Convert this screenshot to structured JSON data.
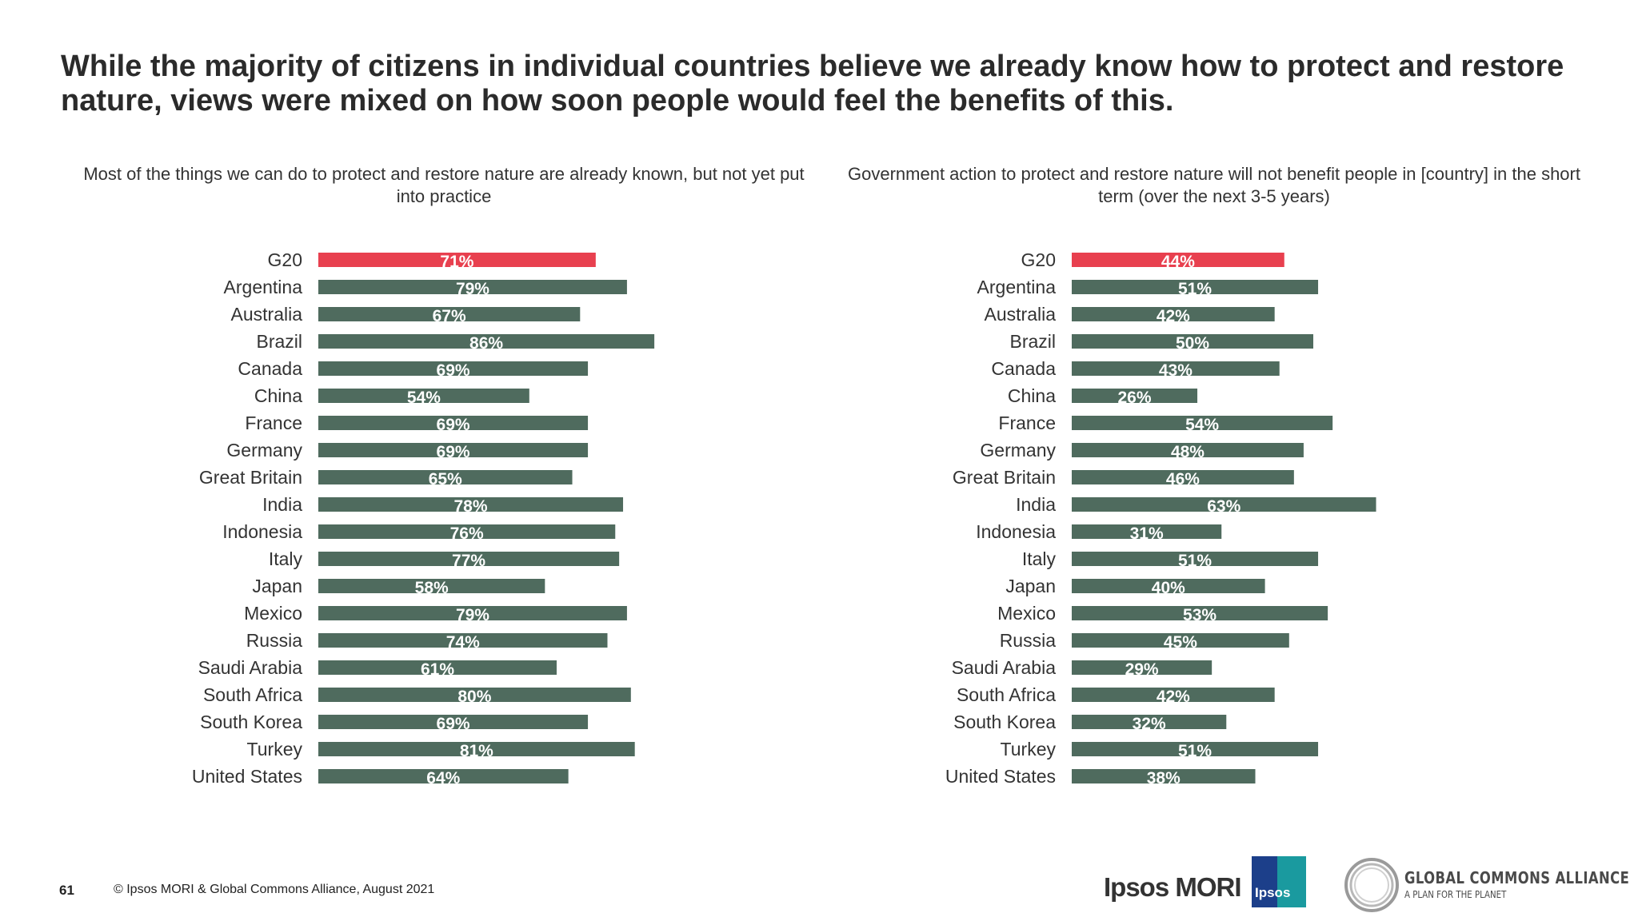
{
  "page": {
    "title": "While the majority of citizens in individual countries believe we already know how to protect and restore nature, views were mixed on how soon people would feel the benefits of this."
  },
  "colors": {
    "highlight": "#e8404f",
    "bar": "#4f6b5e",
    "label_text": "#ffffff"
  },
  "chart_data": [
    {
      "type": "bar",
      "orientation": "horizontal",
      "title": "Most of the things we can do to protect and restore nature are already known, but not yet put into practice",
      "categories": [
        "G20",
        "Argentina",
        "Australia",
        "Brazil",
        "Canada",
        "China",
        "France",
        "Germany",
        "Great Britain",
        "India",
        "Indonesia",
        "Italy",
        "Japan",
        "Mexico",
        "Russia",
        "Saudi Arabia",
        "South Africa",
        "South Korea",
        "Turkey",
        "United States"
      ],
      "values": [
        71,
        79,
        67,
        86,
        69,
        54,
        69,
        69,
        65,
        78,
        76,
        77,
        58,
        79,
        74,
        61,
        80,
        69,
        81,
        64
      ],
      "value_labels": [
        "71%",
        "79%",
        "67%",
        "86%",
        "69%",
        "54%",
        "69%",
        "69%",
        "65%",
        "78%",
        "76%",
        "77%",
        "58%",
        "79%",
        "74%",
        "61%",
        "80%",
        "69%",
        "81%",
        "64%"
      ],
      "highlight_index": 0,
      "xlim": [
        0,
        100
      ],
      "grid": false
    },
    {
      "type": "bar",
      "orientation": "horizontal",
      "title": "Government action to protect and restore nature will not benefit people in [country] in the short term (over the next 3-5 years)",
      "categories": [
        "G20",
        "Argentina",
        "Australia",
        "Brazil",
        "Canada",
        "China",
        "France",
        "Germany",
        "Great Britain",
        "India",
        "Indonesia",
        "Italy",
        "Japan",
        "Mexico",
        "Russia",
        "Saudi Arabia",
        "South Africa",
        "South Korea",
        "Turkey",
        "United States"
      ],
      "values": [
        44,
        51,
        42,
        50,
        43,
        26,
        54,
        48,
        46,
        63,
        31,
        51,
        40,
        53,
        45,
        29,
        42,
        32,
        51,
        38
      ],
      "value_labels": [
        "44%",
        "51%",
        "42%",
        "50%",
        "43%",
        "26%",
        "54%",
        "48%",
        "46%",
        "63%",
        "31%",
        "51%",
        "40%",
        "53%",
        "45%",
        "29%",
        "42%",
        "32%",
        "51%",
        "38%"
      ],
      "highlight_index": 0,
      "xlim": [
        0,
        100
      ],
      "grid": false
    }
  ],
  "footer": {
    "page_number": "61",
    "copyright": "© Ipsos MORI & Global Commons Alliance, August 2021",
    "ipsos_wordmark": "Ipsos MORI",
    "ipsos_badge": "Ipsos",
    "gca_name": "GLOBAL COMMONS ALLIANCE",
    "gca_tagline": "A PLAN FOR THE PLANET"
  }
}
